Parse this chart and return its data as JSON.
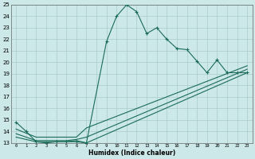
{
  "xlabel": "Humidex (Indice chaleur)",
  "bg_color": "#cce8e8",
  "grid_color": "#aacccc",
  "line_color": "#1a6b5a",
  "xlim": [
    -0.5,
    23.5
  ],
  "ylim": [
    13,
    25
  ],
  "xticks": [
    0,
    1,
    2,
    3,
    4,
    5,
    6,
    7,
    8,
    9,
    10,
    11,
    12,
    13,
    14,
    15,
    16,
    17,
    18,
    19,
    20,
    21,
    22,
    23
  ],
  "yticks": [
    13,
    14,
    15,
    16,
    17,
    18,
    19,
    20,
    21,
    22,
    23,
    24,
    25
  ],
  "line1_x": [
    0,
    1,
    2,
    3,
    4,
    5,
    6,
    7,
    9,
    10,
    11,
    12,
    13,
    14,
    15,
    16,
    17,
    18,
    19,
    20,
    21,
    22,
    23
  ],
  "line1_y": [
    14.8,
    14.0,
    13.1,
    13.0,
    13.1,
    13.1,
    13.1,
    13.0,
    21.8,
    24.0,
    25.0,
    24.4,
    22.5,
    23.0,
    22.0,
    21.2,
    21.1,
    20.1,
    19.1,
    20.2,
    19.1,
    19.1,
    19.1
  ],
  "line2_x": [
    0,
    2,
    3,
    4,
    5,
    6,
    7,
    23
  ],
  "line2_y": [
    13.5,
    13.1,
    13.1,
    13.1,
    13.1,
    13.2,
    13.0,
    19.1
  ],
  "line3_x": [
    0,
    2,
    3,
    4,
    5,
    6,
    7,
    23
  ],
  "line3_y": [
    13.8,
    13.2,
    13.2,
    13.2,
    13.2,
    13.3,
    13.5,
    19.4
  ],
  "line4_x": [
    0,
    2,
    3,
    4,
    5,
    6,
    7,
    23
  ],
  "line4_y": [
    14.2,
    13.5,
    13.5,
    13.5,
    13.5,
    13.5,
    14.3,
    19.7
  ]
}
